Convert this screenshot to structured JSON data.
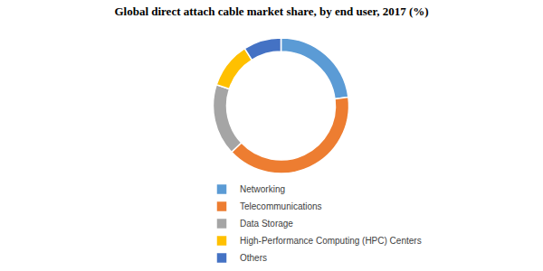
{
  "chart_data": {
    "type": "pie",
    "title": "Global direct attach cable market share, by end user, 2017 (%)",
    "categories": [
      "Networking",
      "Telecommunications",
      "Data Storage",
      "High-Performance Computing (HPC) Centers",
      "Others"
    ],
    "values": [
      23,
      40,
      17,
      11,
      9
    ],
    "colors": [
      "#5b9bd5",
      "#ed7d31",
      "#a5a5a5",
      "#ffc000",
      "#4472c4"
    ],
    "legend": "bottom"
  }
}
